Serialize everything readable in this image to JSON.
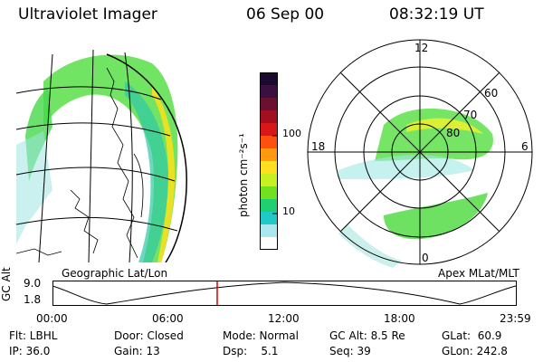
{
  "header": {
    "instrument": "Ultraviolet Imager",
    "date": "06 Sep 00",
    "time": "08:32:19 UT"
  },
  "left_panel": {
    "caption": "Geographic Lat/Lon"
  },
  "colorbar": {
    "unit_label": "photon cm⁻²s⁻¹",
    "ticks": [
      "100",
      "10"
    ],
    "colors": [
      "#1a0a30",
      "#3a1040",
      "#6a1030",
      "#a01020",
      "#d81818",
      "#ff5010",
      "#ff9a10",
      "#ffe020",
      "#c8f020",
      "#70e020",
      "#20d070",
      "#20c8c8",
      "#a8e8ee",
      "#ffffff"
    ]
  },
  "right_panel": {
    "caption": "Apex MLat/MLT",
    "mlt_labels": {
      "top": "12",
      "left": "18",
      "right": "6",
      "bottom": "0"
    },
    "mlat_labels": [
      "60",
      "70",
      "80"
    ]
  },
  "altitude_plot": {
    "ylabel": "GC Alt",
    "y_ticks": [
      "9.0",
      "1.8"
    ],
    "x_ticks": [
      "00:00",
      "06:00",
      "12:00",
      "18:00",
      "23:59"
    ],
    "marker_color": "#d00000"
  },
  "info": {
    "flt": "Flt: LBHL",
    "door": "Door: Closed",
    "mode": "Mode: Normal",
    "gc_alt": "GC Alt: 8.5 Re",
    "glat": "GLat:  60.9",
    "ip": "IP: 36.0",
    "gain": "Gain: 13",
    "dsp": "Dsp:    5.1",
    "seq": "Seq: 39",
    "glon": "GLon: 242.8"
  }
}
